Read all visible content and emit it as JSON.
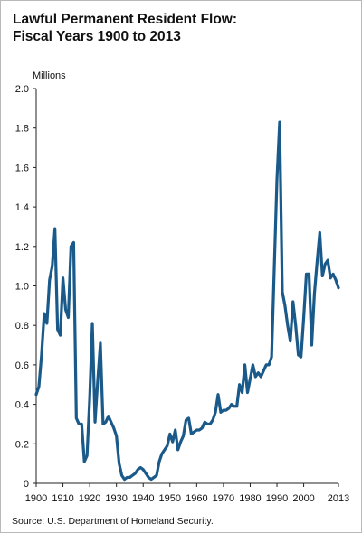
{
  "chart_data": {
    "type": "line",
    "title_line1": "Lawful Permanent Resident Flow:",
    "title_line2": "Fiscal Years 1900 to 2013",
    "ylabel": "Millions",
    "source": "Source: U.S. Department of Homeland Security.",
    "xlim": [
      1900,
      2013
    ],
    "ylim": [
      0,
      2.0
    ],
    "x_ticks": [
      1900,
      1910,
      1920,
      1930,
      1940,
      1950,
      1960,
      1970,
      1980,
      1990,
      2000,
      2013
    ],
    "x_tick_labels": [
      "1900",
      "1910",
      "1920",
      "1930",
      "1940",
      "1950",
      "1960",
      "1970",
      "1980",
      "1990",
      "2000",
      "2013"
    ],
    "y_ticks": [
      0,
      0.2,
      0.4,
      0.6,
      0.8,
      1.0,
      1.2,
      1.4,
      1.6,
      1.8,
      2.0
    ],
    "y_tick_labels": [
      "0",
      "0.2",
      "0.4",
      "0.6",
      "0.8",
      "1.0",
      "1.2",
      "1.4",
      "1.6",
      "1.8",
      "2.0"
    ],
    "grid": false,
    "line_color": "#1a5a8a",
    "series": [
      {
        "x": [
          1900,
          1901,
          1902,
          1903,
          1904,
          1905,
          1906,
          1907,
          1908,
          1909,
          1910,
          1911,
          1912,
          1913,
          1914,
          1915,
          1916,
          1917,
          1918,
          1919,
          1920,
          1921,
          1922,
          1923,
          1924,
          1925,
          1926,
          1927,
          1928,
          1929,
          1930,
          1931,
          1932,
          1933,
          1934,
          1935,
          1936,
          1937,
          1938,
          1939,
          1940,
          1941,
          1942,
          1943,
          1944,
          1945,
          1946,
          1947,
          1948,
          1949,
          1950,
          1951,
          1952,
          1953,
          1954,
          1955,
          1956,
          1957,
          1958,
          1959,
          1960,
          1961,
          1962,
          1963,
          1964,
          1965,
          1966,
          1967,
          1968,
          1969,
          1970,
          1971,
          1972,
          1973,
          1974,
          1975,
          1976,
          1977,
          1978,
          1979,
          1980,
          1981,
          1982,
          1983,
          1984,
          1985,
          1986,
          1987,
          1988,
          1989,
          1990,
          1991,
          1992,
          1993,
          1994,
          1995,
          1996,
          1997,
          1998,
          1999,
          2000,
          2001,
          2002,
          2003,
          2004,
          2005,
          2006,
          2007,
          2008,
          2009,
          2010,
          2011,
          2012,
          2013
        ],
        "values": [
          0.45,
          0.49,
          0.65,
          0.86,
          0.81,
          1.03,
          1.1,
          1.29,
          0.78,
          0.75,
          1.04,
          0.88,
          0.84,
          1.2,
          1.22,
          0.33,
          0.3,
          0.3,
          0.11,
          0.14,
          0.43,
          0.81,
          0.31,
          0.52,
          0.71,
          0.3,
          0.31,
          0.34,
          0.31,
          0.28,
          0.24,
          0.1,
          0.04,
          0.02,
          0.03,
          0.03,
          0.04,
          0.05,
          0.07,
          0.08,
          0.07,
          0.05,
          0.03,
          0.02,
          0.03,
          0.04,
          0.11,
          0.15,
          0.17,
          0.19,
          0.25,
          0.21,
          0.27,
          0.17,
          0.21,
          0.24,
          0.32,
          0.33,
          0.25,
          0.26,
          0.27,
          0.27,
          0.28,
          0.31,
          0.3,
          0.3,
          0.32,
          0.36,
          0.45,
          0.36,
          0.37,
          0.37,
          0.38,
          0.4,
          0.39,
          0.39,
          0.5,
          0.46,
          0.6,
          0.46,
          0.53,
          0.6,
          0.54,
          0.56,
          0.54,
          0.57,
          0.6,
          0.6,
          0.64,
          1.09,
          1.54,
          1.83,
          0.97,
          0.9,
          0.8,
          0.72,
          0.92,
          0.8,
          0.65,
          0.64,
          0.84,
          1.06,
          1.06,
          0.7,
          0.96,
          1.12,
          1.27,
          1.05,
          1.11,
          1.13,
          1.04,
          1.06,
          1.03,
          0.99
        ]
      }
    ]
  }
}
